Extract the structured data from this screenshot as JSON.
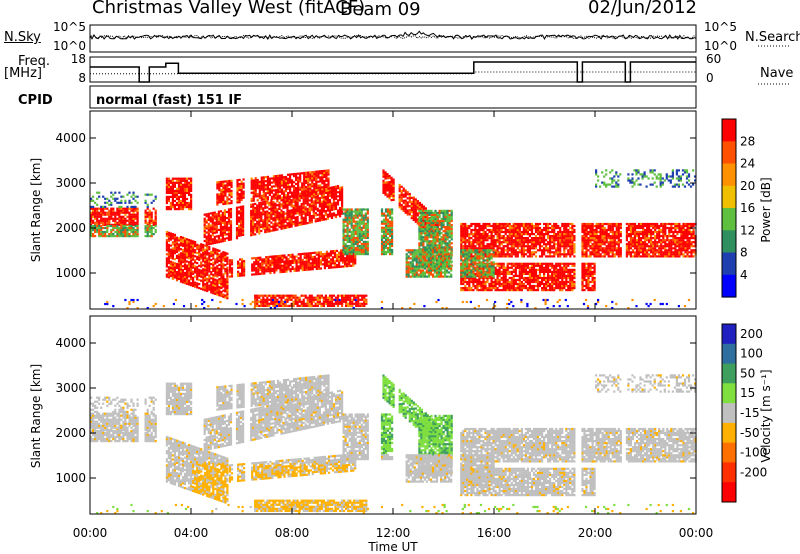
{
  "header": {
    "station": "Christmas Valley West (fitACF)",
    "beam": "Beam 09",
    "date": "02/Jun/2012"
  },
  "chart_data": [
    {
      "type": "line",
      "panel": "noise",
      "ylabel_left": "N.Sky",
      "ylabel_right": "N.Search",
      "left_ticks": [
        "10^5",
        "10^0"
      ],
      "right_ticks": [
        "10^5",
        "10^0"
      ]
    },
    {
      "type": "line",
      "panel": "frequency",
      "ylabel_left_1": "Freq.",
      "ylabel_left_2": "[MHz]",
      "ylabel_right": "Nave",
      "left_ticks": [
        18,
        8
      ],
      "right_ticks": [
        60,
        0
      ],
      "ylim_left": [
        8,
        18
      ],
      "ylim_right": [
        0,
        60
      ],
      "freq_segments": [
        {
          "t0": 0.0,
          "t1": 1.95,
          "value": 14
        },
        {
          "t0": 1.95,
          "t1": 2.35,
          "value": 8
        },
        {
          "t0": 2.35,
          "t1": 3.0,
          "value": 14
        },
        {
          "t0": 3.0,
          "t1": 3.5,
          "value": 15.5
        },
        {
          "t0": 3.5,
          "t1": 15.2,
          "value": 11.5
        },
        {
          "t0": 15.2,
          "t1": 19.3,
          "value": 16
        },
        {
          "t0": 19.3,
          "t1": 19.5,
          "value": 8
        },
        {
          "t0": 19.5,
          "t1": 21.2,
          "value": 16
        },
        {
          "t0": 21.2,
          "t1": 21.4,
          "value": 8
        },
        {
          "t0": 21.4,
          "t1": 24.0,
          "value": 16
        }
      ],
      "nave_segments": [
        {
          "t0": 0.0,
          "t1": 3.5,
          "value": 20
        },
        {
          "t0": 3.5,
          "t1": 15.2,
          "value": 20
        },
        {
          "t0": 15.2,
          "t1": 24.0,
          "value": 24
        }
      ]
    },
    {
      "type": "text",
      "panel": "cpid",
      "label": "CPID",
      "text": "normal (fast) 151 IF"
    },
    {
      "type": "heatmap",
      "panel": "power",
      "ylabel": "Slant Range [km]",
      "yticks": [
        1000,
        2000,
        3000,
        4000
      ],
      "ylim": [
        200,
        4600
      ],
      "xlim": [
        0,
        24
      ],
      "colorbar_label": "Power [dB]",
      "colorbar_ticks": [
        4,
        8,
        12,
        16,
        20,
        24,
        28
      ],
      "colors": [
        "#0000ff",
        "#1f3fb0",
        "#2f8f5f",
        "#5fbf3f",
        "#f0c000",
        "#ff9000",
        "#ff5000",
        "#ff0000"
      ]
    },
    {
      "type": "heatmap",
      "panel": "velocity",
      "ylabel": "Slant Range [km]",
      "yticks": [
        1000,
        2000,
        3000,
        4000
      ],
      "ylim": [
        200,
        4600
      ],
      "xlim": [
        0,
        24
      ],
      "colorbar_label": "Velocity [m s⁻¹]",
      "colorbar_ticks": [
        200,
        100,
        50,
        15,
        -15,
        -50,
        -100,
        -200
      ],
      "colors": [
        "#2020c0",
        "#2f6f9f",
        "#3f9f5f",
        "#7fdf3f",
        "#c0c0c0",
        "#ffb000",
        "#ff7000",
        "#ff3000",
        "#ff0000"
      ]
    }
  ],
  "xaxis": {
    "label": "Time UT",
    "ticks": [
      "00:00",
      "04:00",
      "08:00",
      "12:00",
      "16:00",
      "20:00",
      "00:00"
    ]
  }
}
